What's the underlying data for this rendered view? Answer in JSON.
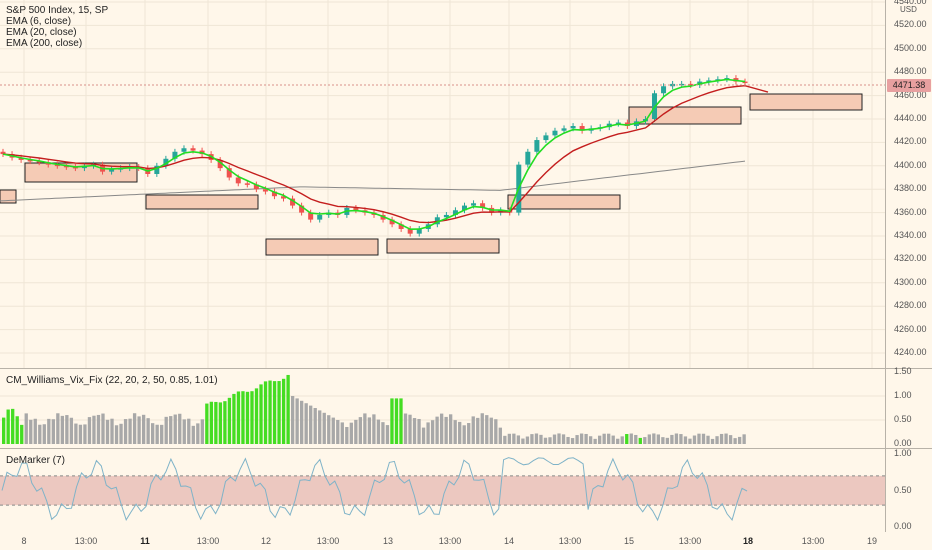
{
  "symbol_title": "S&P 500 Index, 15, SP",
  "ema_labels": [
    "EMA (6, close)",
    "EMA (20, close)",
    "EMA (200, close)"
  ],
  "currency": "USD",
  "last_price": "4471.38",
  "price_axis": [
    "4540.00",
    "4520.00",
    "4500.00",
    "4480.00",
    "4460.00",
    "4440.00",
    "4420.00",
    "4400.00",
    "4380.00",
    "4360.00",
    "4340.00",
    "4320.00",
    "4300.00",
    "4280.00",
    "4260.00",
    "4240.00"
  ],
  "vix_title": "CM_Williams_Vix_Fix (22, 20, 2, 50, 0.85, 1.01)",
  "vix_axis": [
    "1.50",
    "1.00",
    "0.50",
    "0.00"
  ],
  "dem_title": "DeMarker (7)",
  "dem_axis": [
    "1.00",
    "0.50",
    "0.00"
  ],
  "time_axis": [
    {
      "label": "8",
      "bold": false
    },
    {
      "label": "13:00",
      "bold": false
    },
    {
      "label": "11",
      "bold": true
    },
    {
      "label": "13:00",
      "bold": false
    },
    {
      "label": "12",
      "bold": false
    },
    {
      "label": "13:00",
      "bold": false
    },
    {
      "label": "13",
      "bold": false
    },
    {
      "label": "13:00",
      "bold": false
    },
    {
      "label": "14",
      "bold": false
    },
    {
      "label": "13:00",
      "bold": false
    },
    {
      "label": "15",
      "bold": false
    },
    {
      "label": "13:00",
      "bold": false
    },
    {
      "label": "18",
      "bold": true
    },
    {
      "label": "13:00",
      "bold": false
    },
    {
      "label": "19",
      "bold": false
    }
  ],
  "colors": {
    "up_candle": "#26a69a",
    "down_candle": "#ef5350",
    "ema6": "#22dd22",
    "ema20": "#c41e1e",
    "ema200": "#888888",
    "zone_fill": "#f5cbb5",
    "vix_gray": "#a8a8a8",
    "vix_green": "#44dd22",
    "dem_line": "#7fb3c8",
    "dem_band": "#ecc8c0"
  },
  "chart_data": {
    "type": "line",
    "price_close_path": [
      4410,
      4407,
      4405,
      4404,
      4403,
      4401,
      4400,
      4399,
      4398,
      4400,
      4401,
      4395,
      4397,
      4398,
      4399,
      4398,
      4393,
      4400,
      4406,
      4412,
      4415,
      4413,
      4410,
      4405,
      4398,
      4390,
      4385,
      4384,
      4380,
      4378,
      4374,
      4372,
      4366,
      4360,
      4354,
      4358,
      4360,
      4358,
      4364,
      4362,
      4360,
      4358,
      4354,
      4350,
      4346,
      4342,
      4346,
      4350,
      4356,
      4358,
      4362,
      4366,
      4368,
      4364,
      4360,
      4362,
      4360,
      4401,
      4412,
      4422,
      4426,
      4430,
      4432,
      4434,
      4430,
      4432,
      4433,
      4436,
      4437,
      4434,
      4438,
      4440,
      4462,
      4468,
      4470,
      4470,
      4469,
      4472,
      4473,
      4474,
      4475,
      4472,
      4471
    ],
    "ema200_range": [
      4370,
      4404
    ],
    "price_range": [
      4230,
      4550
    ],
    "vix_range": [
      0,
      1.5
    ],
    "demarker_band": [
      0.3,
      0.7
    ]
  }
}
